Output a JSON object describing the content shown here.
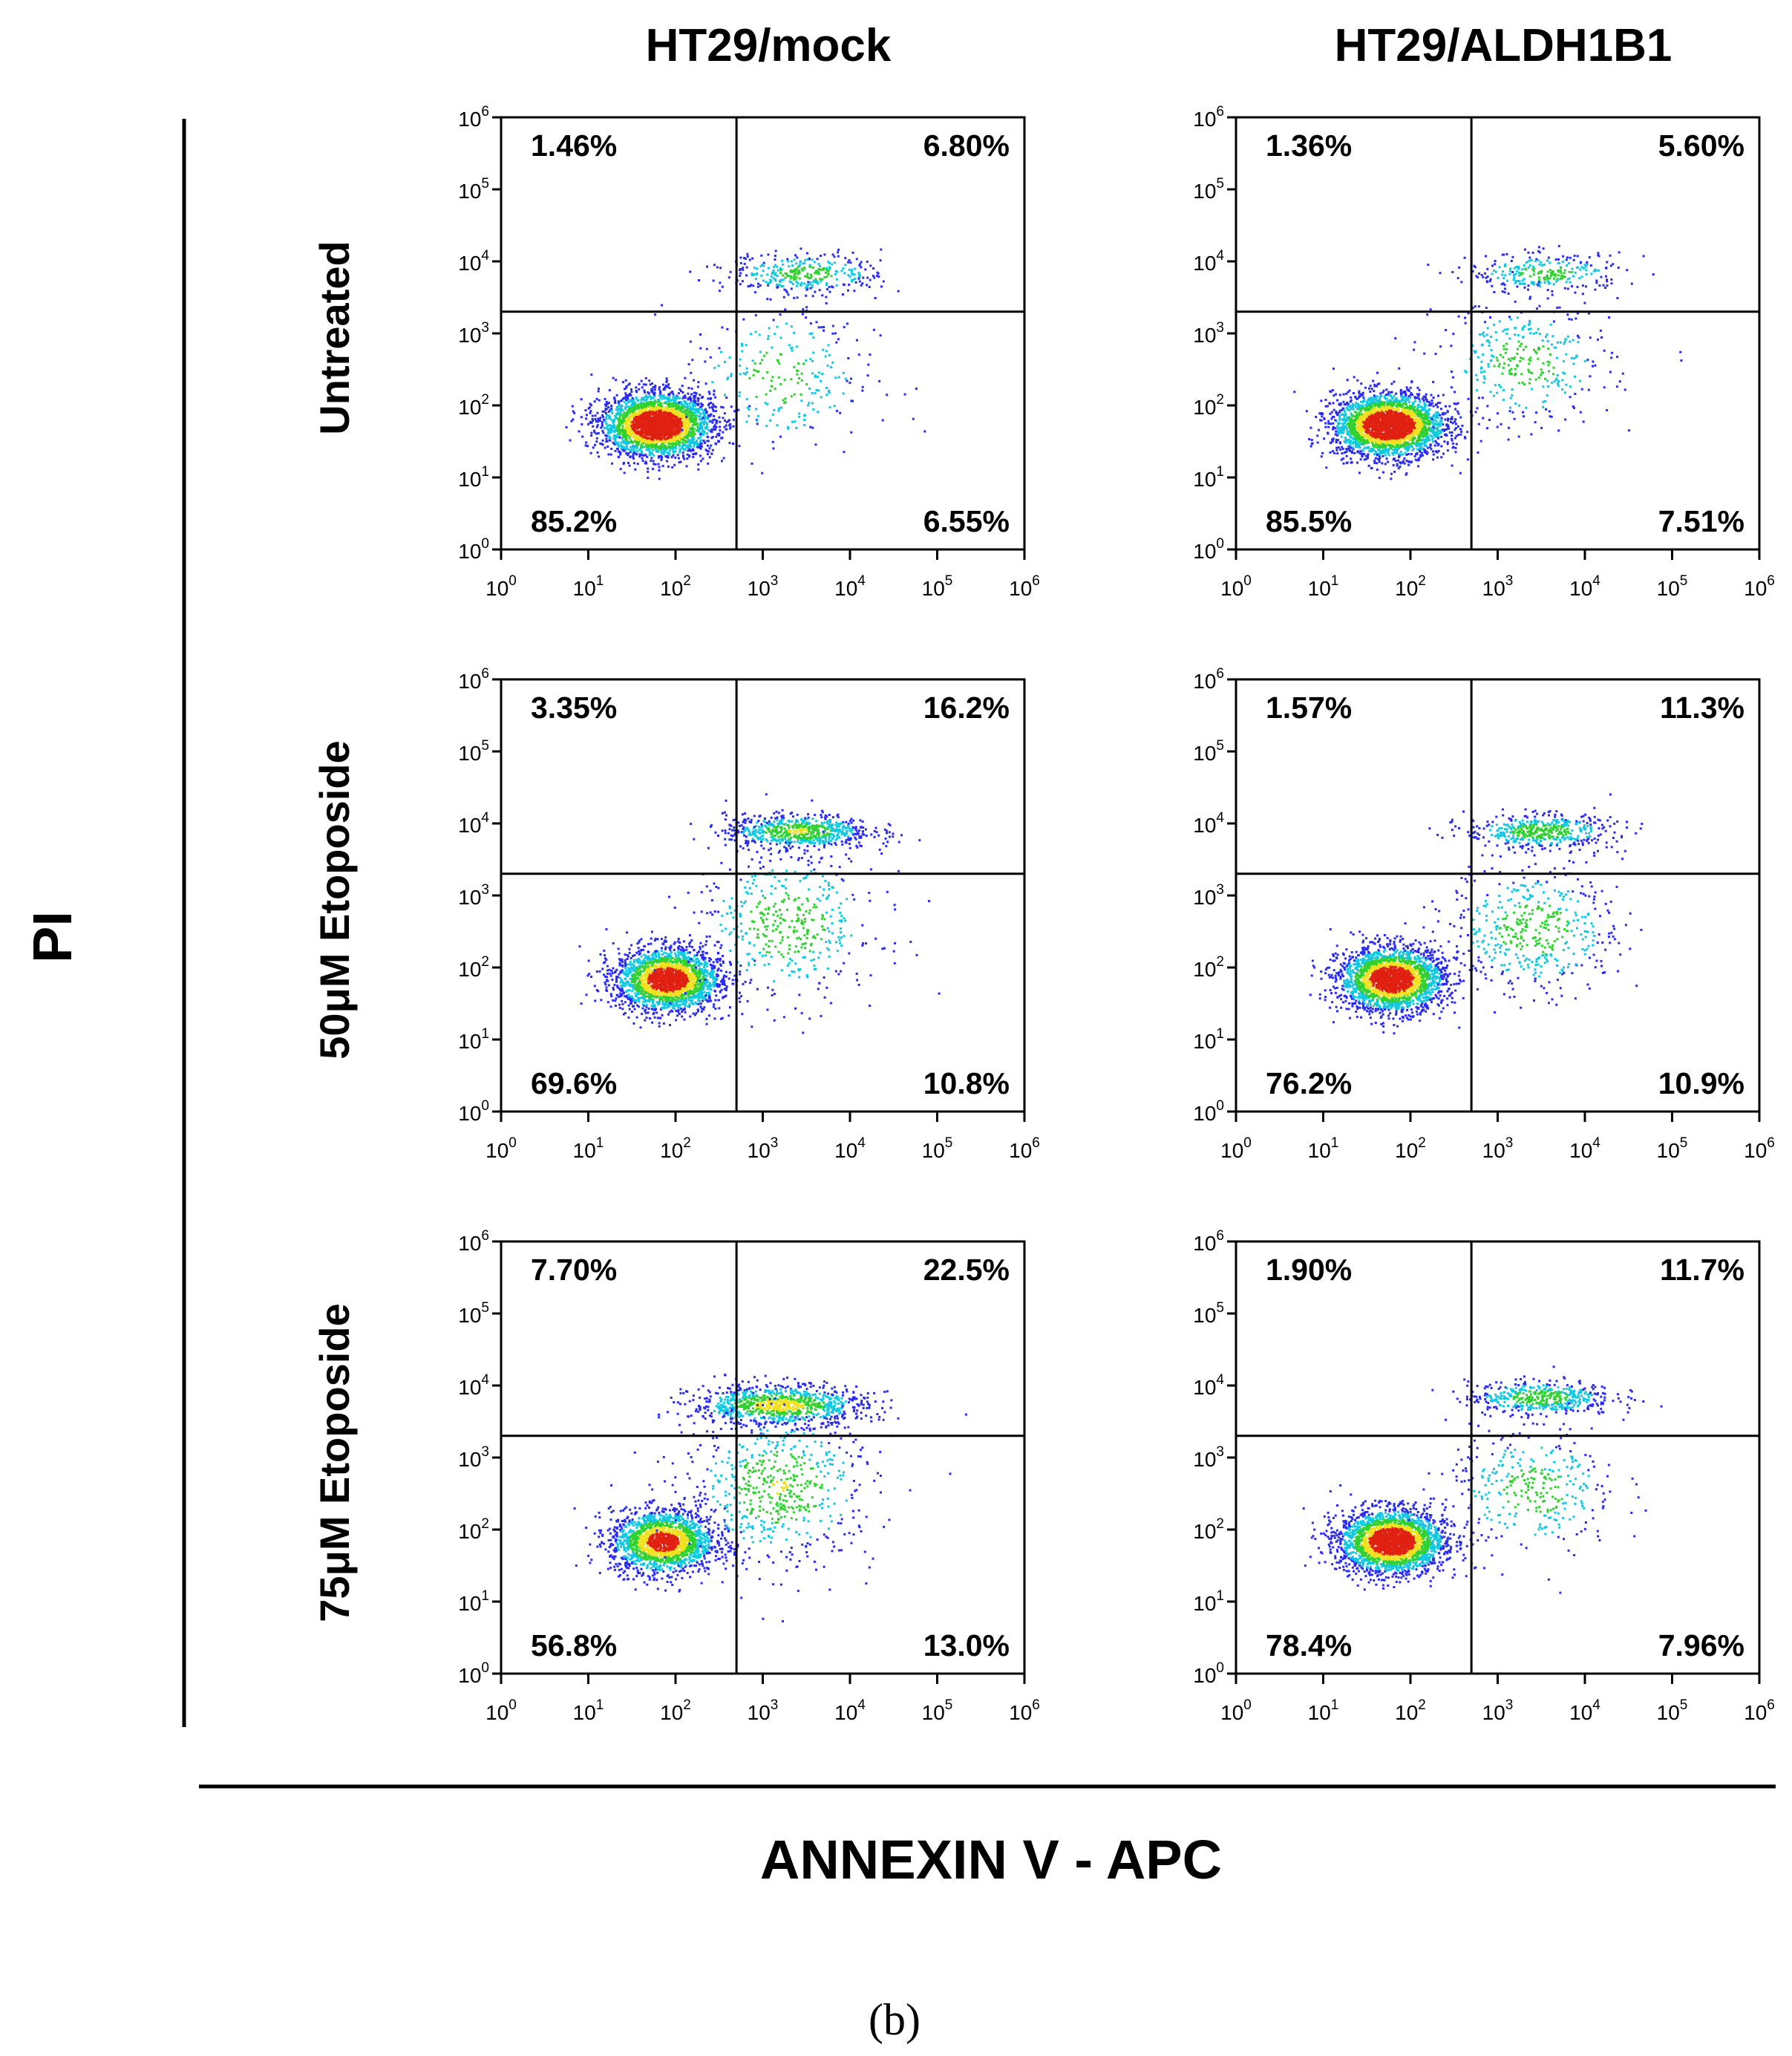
{
  "figure_label": "(b)",
  "axis_titles": {
    "y": "PI",
    "x": "ANNEXIN V - APC"
  },
  "column_titles": [
    "HT29/mock",
    "HT29/ALDH1B1"
  ],
  "row_titles": [
    "Untreated",
    "50μM Etoposide",
    "75μM Etoposide"
  ],
  "colors": {
    "low_density": "#2a2af0",
    "mid_density": "#10c8e0",
    "high_density": "#30d030",
    "higher_density": "#f0e020",
    "peak_density": "#e02010",
    "lines": "#000000"
  },
  "chart_data": [
    {
      "type": "scatter",
      "subtype": "flow-cytometry density dot plot",
      "column": "HT29/mock",
      "row": "Untreated",
      "x_scale": "log",
      "y_scale": "log",
      "xlim": [
        1,
        1000000
      ],
      "ylim": [
        1,
        1000000
      ],
      "x_ticks": [
        "10^0",
        "10^1",
        "10^2",
        "10^3",
        "10^4",
        "10^5",
        "10^6"
      ],
      "y_ticks": [
        "10^0",
        "10^1",
        "10^2",
        "10^3",
        "10^4",
        "10^5",
        "10^6"
      ],
      "quadrant_gate": {
        "x": 500,
        "y": 2000
      },
      "quadrants": {
        "upper_left": "1.46%",
        "upper_right": "6.80%",
        "lower_left": "85.2%",
        "lower_right": "6.55%"
      },
      "populations": [
        {
          "x": 60,
          "y": 55,
          "share": 0.82,
          "spread": [
            0.32,
            0.22
          ]
        },
        {
          "x": 3000,
          "y": 7000,
          "share": 0.1,
          "spread": [
            0.45,
            0.14
          ]
        },
        {
          "x": 1500,
          "y": 250,
          "share": 0.08,
          "spread": [
            0.55,
            0.55
          ]
        }
      ]
    },
    {
      "type": "scatter",
      "subtype": "flow-cytometry density dot plot",
      "column": "HT29/ALDH1B1",
      "row": "Untreated",
      "x_scale": "log",
      "y_scale": "log",
      "xlim": [
        1,
        1000000
      ],
      "ylim": [
        1,
        1000000
      ],
      "x_ticks": [
        "10^0",
        "10^1",
        "10^2",
        "10^3",
        "10^4",
        "10^5",
        "10^6"
      ],
      "y_ticks": [
        "10^0",
        "10^1",
        "10^2",
        "10^3",
        "10^4",
        "10^5",
        "10^6"
      ],
      "quadrant_gate": {
        "x": 500,
        "y": 2000
      },
      "quadrants": {
        "upper_left": "1.36%",
        "upper_right": "5.60%",
        "lower_left": "85.5%",
        "lower_right": "7.51%"
      },
      "populations": [
        {
          "x": 55,
          "y": 55,
          "share": 0.82,
          "spread": [
            0.32,
            0.22
          ]
        },
        {
          "x": 3500,
          "y": 7000,
          "share": 0.08,
          "spread": [
            0.45,
            0.14
          ]
        },
        {
          "x": 2000,
          "y": 400,
          "share": 0.1,
          "spread": [
            0.5,
            0.45
          ]
        }
      ]
    },
    {
      "type": "scatter",
      "subtype": "flow-cytometry density dot plot",
      "column": "HT29/mock",
      "row": "50μM Etoposide",
      "x_scale": "log",
      "y_scale": "log",
      "xlim": [
        1,
        1000000
      ],
      "ylim": [
        1,
        1000000
      ],
      "x_ticks": [
        "10^0",
        "10^1",
        "10^2",
        "10^3",
        "10^4",
        "10^5",
        "10^6"
      ],
      "y_ticks": [
        "10^0",
        "10^1",
        "10^2",
        "10^3",
        "10^4",
        "10^5",
        "10^6"
      ],
      "quadrant_gate": {
        "x": 500,
        "y": 2000
      },
      "quadrants": {
        "upper_left": "3.35%",
        "upper_right": "16.2%",
        "lower_left": "69.6%",
        "lower_right": "10.8%"
      },
      "populations": [
        {
          "x": 80,
          "y": 70,
          "share": 0.66,
          "spread": [
            0.3,
            0.22
          ]
        },
        {
          "x": 2500,
          "y": 8000,
          "share": 0.2,
          "spread": [
            0.42,
            0.12
          ]
        },
        {
          "x": 1800,
          "y": 400,
          "share": 0.14,
          "spread": [
            0.55,
            0.55
          ]
        }
      ]
    },
    {
      "type": "scatter",
      "subtype": "flow-cytometry density dot plot",
      "column": "HT29/ALDH1B1",
      "row": "50μM Etoposide",
      "x_scale": "log",
      "y_scale": "log",
      "xlim": [
        1,
        1000000
      ],
      "ylim": [
        1,
        1000000
      ],
      "x_ticks": [
        "10^0",
        "10^1",
        "10^2",
        "10^3",
        "10^4",
        "10^5",
        "10^6"
      ],
      "y_ticks": [
        "10^0",
        "10^1",
        "10^2",
        "10^3",
        "10^4",
        "10^5",
        "10^6"
      ],
      "quadrant_gate": {
        "x": 500,
        "y": 2000
      },
      "quadrants": {
        "upper_left": "1.57%",
        "upper_right": "11.3%",
        "lower_left": "76.2%",
        "lower_right": "10.9%"
      },
      "populations": [
        {
          "x": 60,
          "y": 70,
          "share": 0.72,
          "spread": [
            0.3,
            0.22
          ]
        },
        {
          "x": 3000,
          "y": 8000,
          "share": 0.14,
          "spread": [
            0.42,
            0.12
          ]
        },
        {
          "x": 2500,
          "y": 350,
          "share": 0.14,
          "spread": [
            0.5,
            0.45
          ]
        }
      ]
    },
    {
      "type": "scatter",
      "subtype": "flow-cytometry density dot plot",
      "column": "HT29/mock",
      "row": "75μM Etoposide",
      "x_scale": "log",
      "y_scale": "log",
      "xlim": [
        1,
        1000000
      ],
      "ylim": [
        1,
        1000000
      ],
      "x_ticks": [
        "10^0",
        "10^1",
        "10^2",
        "10^3",
        "10^4",
        "10^5",
        "10^6"
      ],
      "y_ticks": [
        "10^0",
        "10^1",
        "10^2",
        "10^3",
        "10^4",
        "10^5",
        "10^6"
      ],
      "quadrant_gate": {
        "x": 500,
        "y": 2000
      },
      "quadrants": {
        "upper_left": "7.70%",
        "upper_right": "22.5%",
        "lower_left": "56.8%",
        "lower_right": "13.0%"
      },
      "populations": [
        {
          "x": 70,
          "y": 70,
          "share": 0.54,
          "spread": [
            0.3,
            0.22
          ]
        },
        {
          "x": 1500,
          "y": 5500,
          "share": 0.28,
          "spread": [
            0.5,
            0.14
          ]
        },
        {
          "x": 1500,
          "y": 400,
          "share": 0.18,
          "spread": [
            0.55,
            0.55
          ]
        }
      ]
    },
    {
      "type": "scatter",
      "subtype": "flow-cytometry density dot plot",
      "column": "HT29/ALDH1B1",
      "row": "75μM Etoposide",
      "x_scale": "log",
      "y_scale": "log",
      "xlim": [
        1,
        1000000
      ],
      "ylim": [
        1,
        1000000
      ],
      "x_ticks": [
        "10^0",
        "10^1",
        "10^2",
        "10^3",
        "10^4",
        "10^5",
        "10^6"
      ],
      "y_ticks": [
        "10^0",
        "10^1",
        "10^2",
        "10^3",
        "10^4",
        "10^5",
        "10^6"
      ],
      "quadrant_gate": {
        "x": 500,
        "y": 2000
      },
      "quadrants": {
        "upper_left": "1.90%",
        "upper_right": "11.7%",
        "lower_left": "78.4%",
        "lower_right": "7.96%"
      },
      "populations": [
        {
          "x": 60,
          "y": 70,
          "share": 0.76,
          "spread": [
            0.3,
            0.22
          ]
        },
        {
          "x": 3000,
          "y": 7000,
          "share": 0.14,
          "spread": [
            0.42,
            0.12
          ]
        },
        {
          "x": 2500,
          "y": 350,
          "share": 0.1,
          "spread": [
            0.5,
            0.45
          ]
        }
      ]
    }
  ]
}
